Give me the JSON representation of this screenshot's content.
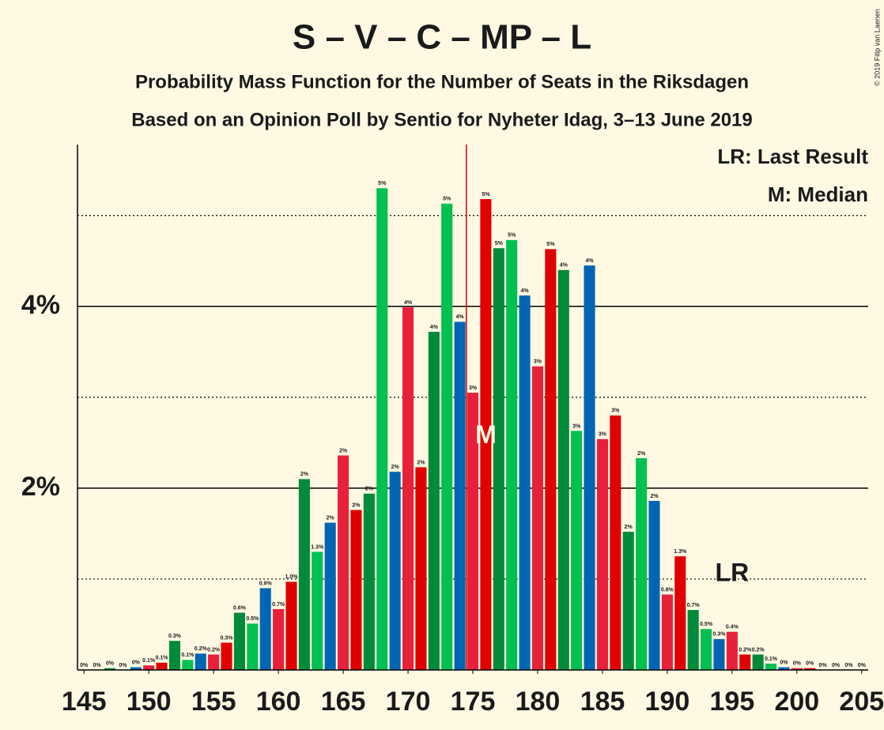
{
  "chart_data": {
    "type": "bar",
    "title": "S – V – C – MP – L",
    "subtitle": [
      "Probability Mass Function for the Number of Seats in the Riksdagen",
      "Based on an Opinion Poll by Sentio for Nyheter Idag, 3–13 June 2019"
    ],
    "copyright": "© 2019 Filip van Laenen",
    "legend": [
      "LR: Last Result",
      "M: Median"
    ],
    "categories": [
      145,
      146,
      147,
      148,
      149,
      150,
      151,
      152,
      153,
      154,
      155,
      156,
      157,
      158,
      159,
      160,
      161,
      162,
      163,
      164,
      165,
      166,
      167,
      168,
      169,
      170,
      171,
      172,
      173,
      174,
      175,
      176,
      177,
      178,
      179,
      180,
      181,
      182,
      183,
      184,
      185,
      186,
      187,
      188,
      189,
      190,
      191,
      192,
      193,
      194,
      195,
      196,
      197,
      198,
      199,
      200,
      201,
      202,
      203,
      204,
      205
    ],
    "values": [
      0,
      0,
      0.02,
      0,
      0.03,
      0.05,
      0.08,
      0.32,
      0.11,
      0.18,
      0.17,
      0.3,
      0.63,
      0.51,
      0.9,
      0.67,
      0.97,
      2.1,
      1.3,
      1.62,
      2.36,
      1.76,
      1.94,
      5.3,
      2.18,
      3.99,
      2.23,
      3.72,
      5.13,
      3.83,
      3.05,
      5.18,
      4.64,
      4.73,
      4.12,
      3.34,
      4.63,
      4.4,
      2.63,
      4.45,
      2.54,
      2.8,
      1.52,
      2.33,
      1.86,
      0.83,
      1.25,
      0.66,
      0.45,
      0.34,
      0.42,
      0.17,
      0.17,
      0.07,
      0.03,
      0.02,
      0.02,
      0,
      0,
      0,
      0
    ],
    "value_labels": [
      "0%",
      "0%",
      "0%",
      "0%",
      "0%",
      "0.1%",
      "0.1%",
      "0.3%",
      "0.1%",
      "0.2%",
      "0.2%",
      "0.3%",
      "0.6%",
      "0.5%",
      "0.9%",
      "0.7%",
      "1.0%",
      "2%",
      "1.3%",
      "2%",
      "2%",
      "2%",
      "2%",
      "5%",
      "2%",
      "4%",
      "2%",
      "4%",
      "5%",
      "4%",
      "3%",
      "5%",
      "5%",
      "5%",
      "4%",
      "3%",
      "5%",
      "4%",
      "3%",
      "4%",
      "3%",
      "3%",
      "2%",
      "2%",
      "2%",
      "0.8%",
      "1.3%",
      "0.7%",
      "0.5%",
      "0.3%",
      "0.4%",
      "0.2%",
      "0.2%",
      "0.1%",
      "0%",
      "0%",
      "0%",
      "0%",
      "0%",
      "0%",
      "0%"
    ],
    "color_cycle": [
      "#e8213b",
      "#e00000",
      "#008a3a",
      "#00c050",
      "#0066b3"
    ],
    "xlim": [
      144.5,
      205.5
    ],
    "xticks": [
      145,
      150,
      155,
      160,
      165,
      170,
      175,
      180,
      185,
      190,
      195,
      200,
      205
    ],
    "ylim": [
      0,
      5.78
    ],
    "yticks": [
      {
        "value": 2,
        "label": "2%"
      },
      {
        "value": 4,
        "label": "4%"
      }
    ],
    "minor_grid": [
      1,
      3,
      5
    ],
    "median": {
      "seat": 176,
      "label": "M"
    },
    "last_result": {
      "seat": 195,
      "label": "LR"
    }
  }
}
